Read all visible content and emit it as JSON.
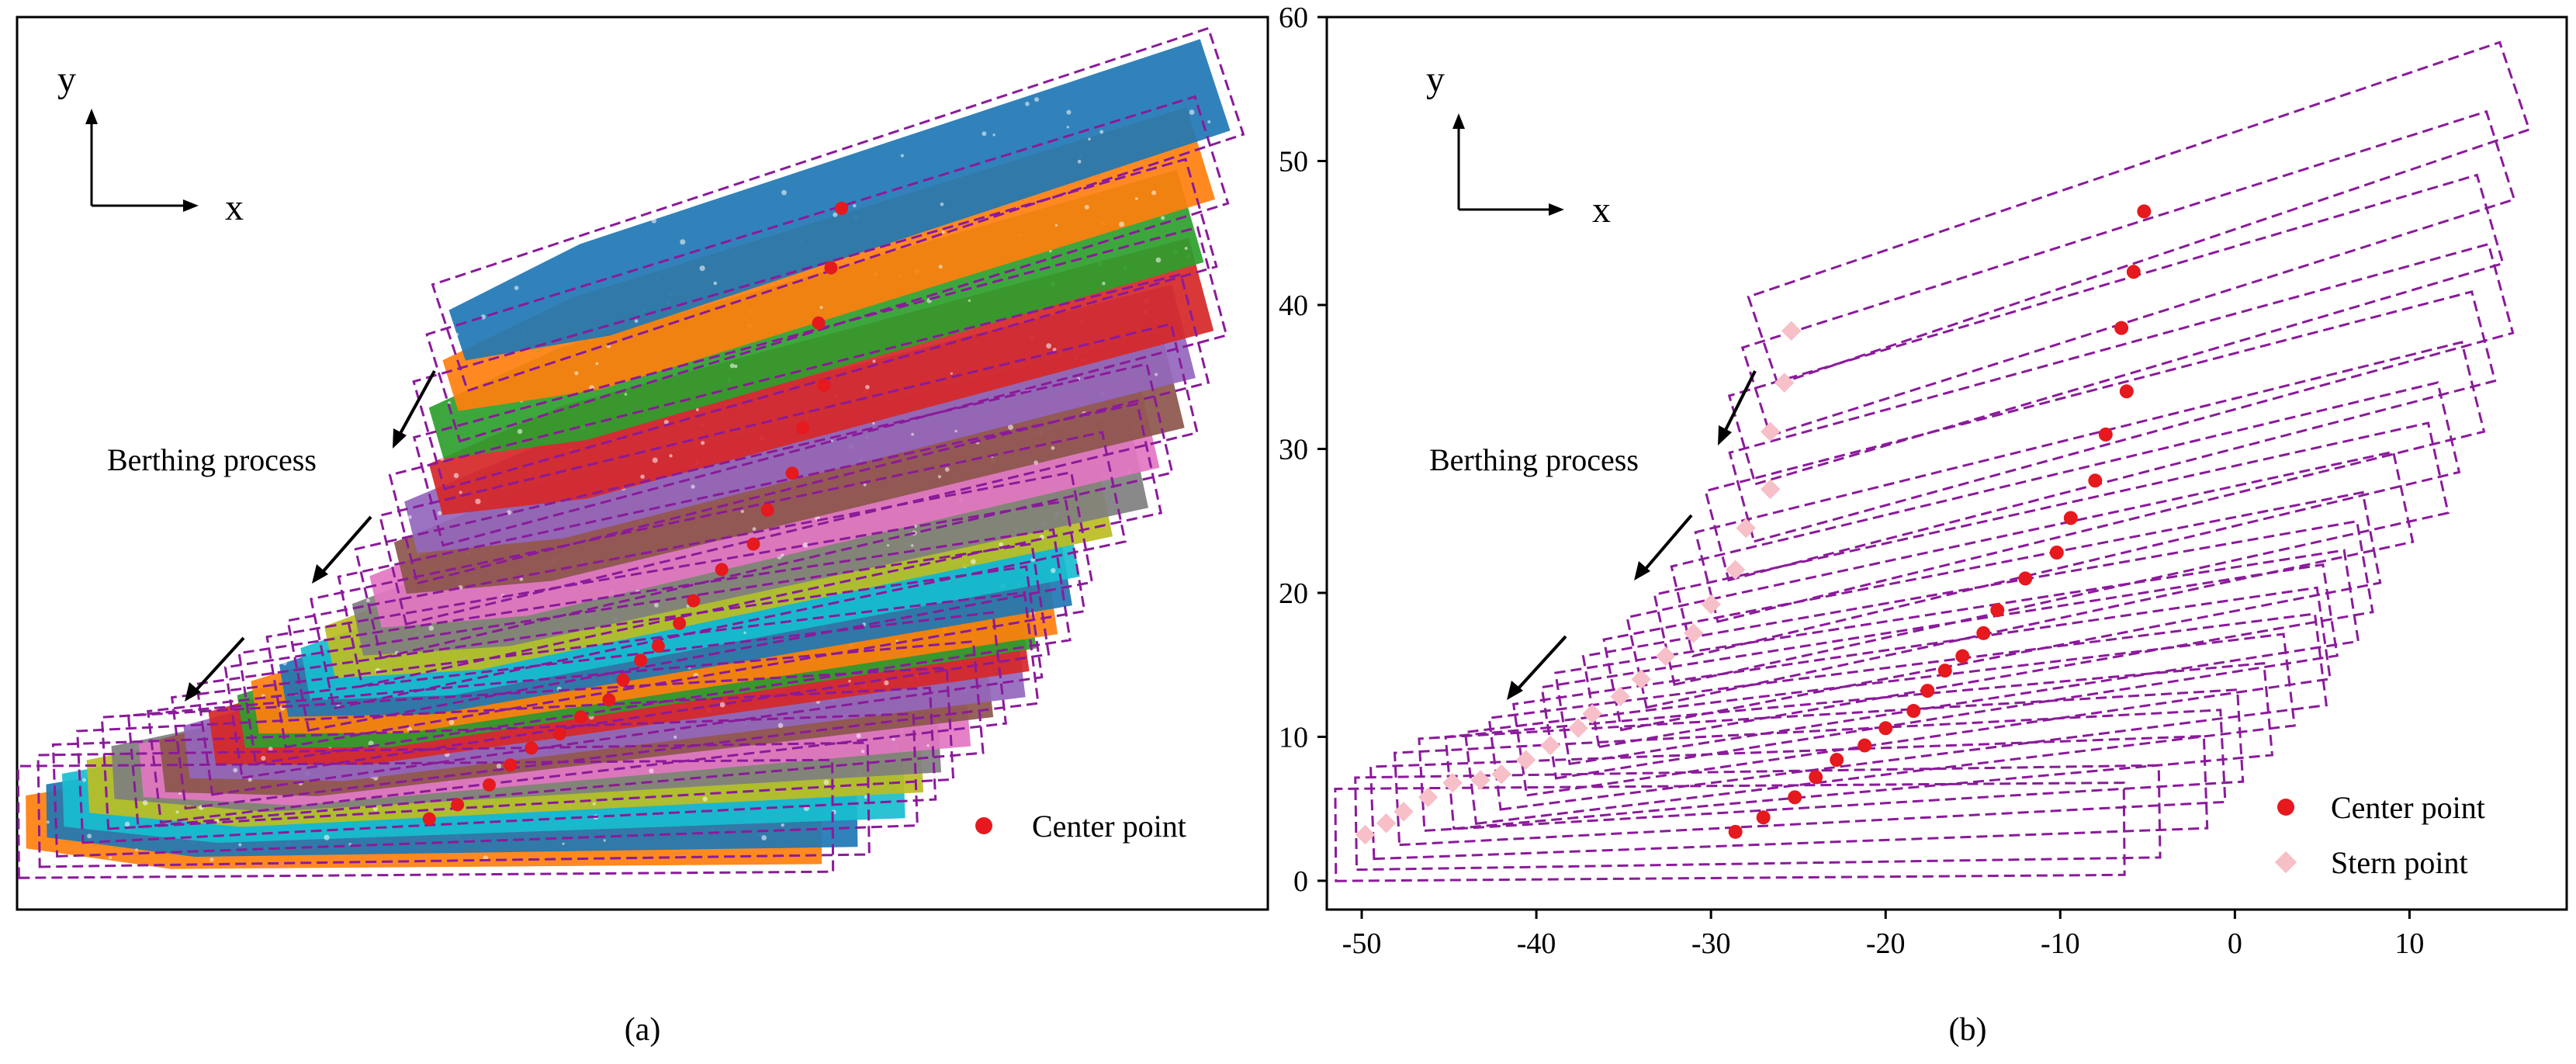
{
  "figure": {
    "panel_a_caption": "(a)",
    "panel_b_caption": "(b)",
    "axis_x_label": "x",
    "axis_y_label": "y",
    "process_label": "Berthing process",
    "center_label": "Center point",
    "stern_label": "Stern point",
    "colors": {
      "box": "#8B1A9B",
      "center": "#E5191E",
      "stern": "#F7BFC8",
      "axis": "#000000"
    }
  },
  "chart_data": [
    {
      "panel": "(a)",
      "type": "scatter",
      "title": "",
      "xlabel": "x",
      "ylabel": "y",
      "ticks_shown": false,
      "annotation": "Berthing process",
      "legend": [
        {
          "name": "Center point",
          "marker": "circle",
          "color": "#E5191E"
        }
      ],
      "cluster_colors": [
        "#1f77b4",
        "#ff7f0e",
        "#2ca02c",
        "#d62728",
        "#9467bd",
        "#8c564b",
        "#e377c2",
        "#7f7f7f",
        "#bcbd22",
        "#17becf"
      ],
      "frames": 25,
      "legend_placement": "bottom-right"
    },
    {
      "panel": "(b)",
      "type": "scatter",
      "title": "",
      "xlabel": "x",
      "ylabel": "y",
      "xlim": [
        -52,
        19
      ],
      "ylim": [
        -2,
        60
      ],
      "xticks": [
        -50,
        -40,
        -30,
        -20,
        -10,
        0,
        10
      ],
      "yticks": [
        0,
        10,
        20,
        30,
        40,
        50,
        60
      ],
      "annotation": "Berthing process",
      "legend_placement": "bottom-right",
      "series": [
        {
          "name": "Center point",
          "marker": "circle",
          "color": "#E5191E",
          "points": [
            [
              -5.2,
              46.5
            ],
            [
              -5.8,
              42.3
            ],
            [
              -6.5,
              38.4
            ],
            [
              -6.2,
              34.0
            ],
            [
              -7.4,
              31.0
            ],
            [
              -8.0,
              27.8
            ],
            [
              -9.4,
              25.2
            ],
            [
              -10.2,
              22.8
            ],
            [
              -12.0,
              21.0
            ],
            [
              -13.6,
              18.8
            ],
            [
              -14.4,
              17.2
            ],
            [
              -15.6,
              15.6
            ],
            [
              -16.6,
              14.6
            ],
            [
              -17.6,
              13.2
            ],
            [
              -18.4,
              11.8
            ],
            [
              -20.0,
              10.6
            ],
            [
              -21.2,
              9.4
            ],
            [
              -22.8,
              8.4
            ],
            [
              -24.0,
              7.2
            ],
            [
              -25.2,
              5.8
            ],
            [
              -27.0,
              4.4
            ],
            [
              -28.6,
              3.4
            ]
          ]
        },
        {
          "name": "Stern point",
          "marker": "diamond",
          "color": "#F7BFC8",
          "points": [
            [
              -25.4,
              38.2
            ],
            [
              -25.8,
              34.6
            ],
            [
              -26.6,
              31.2
            ],
            [
              -26.6,
              27.2
            ],
            [
              -28.0,
              24.5
            ],
            [
              -28.6,
              21.6
            ],
            [
              -30.0,
              19.2
            ],
            [
              -31.0,
              17.2
            ],
            [
              -32.6,
              15.6
            ],
            [
              -34.0,
              14.0
            ],
            [
              -35.2,
              12.8
            ],
            [
              -36.8,
              11.6
            ],
            [
              -37.6,
              10.6
            ],
            [
              -39.2,
              9.4
            ],
            [
              -40.6,
              8.4
            ],
            [
              -42.0,
              7.4
            ],
            [
              -43.2,
              7.0
            ],
            [
              -44.8,
              6.8
            ],
            [
              -46.2,
              5.8
            ],
            [
              -47.6,
              4.8
            ],
            [
              -48.6,
              4.0
            ],
            [
              -49.8,
              3.2
            ]
          ]
        }
      ]
    }
  ]
}
